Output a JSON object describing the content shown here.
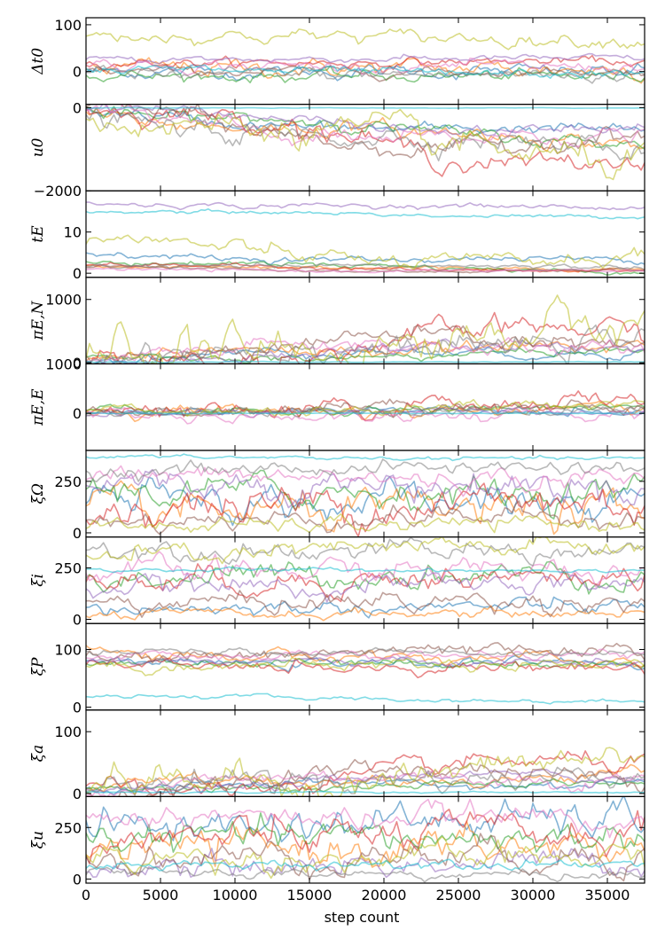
{
  "chart_data": {
    "type": "line",
    "description_type": "mcmc-trace-plot",
    "xlabel": "step count",
    "xlim": [
      0,
      37500
    ],
    "xticks": [
      0,
      5000,
      10000,
      15000,
      20000,
      25000,
      30000,
      35000
    ],
    "xtick_labels": [
      "0",
      "5000",
      "10000",
      "15000",
      "20000",
      "25000",
      "30000",
      "35000"
    ],
    "walker_colors": [
      "#1f77b4",
      "#ff7f0e",
      "#2ca02c",
      "#d62728",
      "#9467bd",
      "#8c564b",
      "#e377c2",
      "#7f7f7f",
      "#bcbd22",
      "#17becf"
    ],
    "panels": [
      {
        "ylabel": "Δt0",
        "ylim": [
          -70,
          115
        ],
        "yticks": [
          0,
          100
        ],
        "ytick_labels": [
          "0",
          "100"
        ],
        "walkers": [
          {
            "start": 0,
            "drift": 0,
            "noise": 12,
            "level": 0
          },
          {
            "start": 10,
            "drift": -5,
            "noise": 15,
            "level": 5
          },
          {
            "start": -10,
            "drift": 0,
            "noise": 10,
            "level": -10
          },
          {
            "start": 20,
            "drift": 5,
            "noise": 8,
            "level": 20
          },
          {
            "start": 25,
            "drift": 0,
            "noise": 6,
            "level": 28
          },
          {
            "start": 0,
            "drift": 0,
            "noise": 8,
            "level": 0
          },
          {
            "start": 15,
            "drift": 0,
            "noise": 10,
            "level": 10
          },
          {
            "start": -5,
            "drift": -5,
            "noise": 12,
            "level": -8
          },
          {
            "start": 80,
            "drift": -10,
            "noise": 12,
            "level": 70
          },
          {
            "start": 5,
            "drift": -5,
            "noise": 8,
            "level": -5
          }
        ]
      },
      {
        "ylabel": "u0",
        "ylim": [
          -2000,
          80
        ],
        "yticks": [
          -2000,
          0
        ],
        "ytick_labels": [
          "−2000",
          "0"
        ],
        "walkers": [
          {
            "start": -50,
            "drift": -400,
            "noise": 120,
            "level": -600
          },
          {
            "start": -60,
            "drift": -600,
            "noise": 150,
            "level": -800
          },
          {
            "start": -40,
            "drift": -500,
            "noise": 130,
            "level": -700
          },
          {
            "start": -80,
            "drift": -900,
            "noise": 200,
            "level": -1100
          },
          {
            "start": -30,
            "drift": -300,
            "noise": 100,
            "level": -500
          },
          {
            "start": -70,
            "drift": -700,
            "noise": 180,
            "level": -900
          },
          {
            "start": -50,
            "drift": -650,
            "noise": 170,
            "level": -850
          },
          {
            "start": -60,
            "drift": -800,
            "noise": 200,
            "level": -1000
          },
          {
            "start": -40,
            "drift": -900,
            "noise": 300,
            "level": -1100
          },
          {
            "start": -10,
            "drift": 0,
            "noise": 5,
            "level": -10
          }
        ]
      },
      {
        "ylabel": "tE",
        "ylim": [
          -1,
          20
        ],
        "yticks": [
          0,
          10
        ],
        "ytick_labels": [
          "0",
          "10"
        ],
        "walkers": [
          {
            "start": 5,
            "drift": -2,
            "noise": 0.6,
            "level": 3
          },
          {
            "start": 2,
            "drift": -1,
            "noise": 0.4,
            "level": 1
          },
          {
            "start": 3,
            "drift": -2,
            "noise": 0.5,
            "level": 1
          },
          {
            "start": 2,
            "drift": -1,
            "noise": 0.4,
            "level": 0.8
          },
          {
            "start": 17,
            "drift": 1,
            "noise": 0.5,
            "level": 16
          },
          {
            "start": 1.5,
            "drift": -1,
            "noise": 0.3,
            "level": 0.5
          },
          {
            "start": 1,
            "drift": -0.5,
            "noise": 0.3,
            "level": 0.5
          },
          {
            "start": 2,
            "drift": -1,
            "noise": 0.5,
            "level": 1.5
          },
          {
            "start": 8,
            "drift": 3,
            "noise": 1.5,
            "level": 3
          },
          {
            "start": 15,
            "drift": -1,
            "noise": 0.4,
            "level": 14
          }
        ]
      },
      {
        "ylabel": "πE,N",
        "ylim": [
          -20,
          1350
        ],
        "yticks": [
          0,
          1000
        ],
        "ytick_labels": [
          "0",
          "1000"
        ],
        "walkers": [
          {
            "start": 20,
            "drift": 200,
            "noise": 60,
            "level": 200
          },
          {
            "start": 20,
            "drift": 300,
            "noise": 80,
            "level": 300
          },
          {
            "start": 20,
            "drift": 150,
            "noise": 50,
            "level": 150
          },
          {
            "start": 30,
            "drift": 500,
            "noise": 150,
            "level": 400
          },
          {
            "start": 20,
            "drift": 250,
            "noise": 70,
            "level": 250
          },
          {
            "start": 30,
            "drift": 400,
            "noise": 120,
            "level": 350
          },
          {
            "start": 20,
            "drift": 350,
            "noise": 100,
            "level": 300
          },
          {
            "start": 20,
            "drift": 400,
            "noise": 150,
            "level": 350
          },
          {
            "start": 30,
            "drift": 600,
            "noise": 250,
            "level": 500
          },
          {
            "start": 10,
            "drift": 0,
            "noise": 5,
            "level": 10
          }
        ]
      },
      {
        "ylabel": "πE,E",
        "ylim": [
          -750,
          1000
        ],
        "yticks": [
          0,
          1000
        ],
        "ytick_labels": [
          "0",
          "1000"
        ],
        "walkers": [
          {
            "start": 0,
            "drift": 100,
            "noise": 60,
            "level": 50
          },
          {
            "start": 0,
            "drift": 200,
            "noise": 100,
            "level": 100
          },
          {
            "start": 20,
            "drift": 150,
            "noise": 70,
            "level": 100
          },
          {
            "start": 0,
            "drift": 300,
            "noise": 150,
            "level": 150
          },
          {
            "start": 0,
            "drift": 50,
            "noise": 50,
            "level": 30
          },
          {
            "start": 10,
            "drift": 200,
            "noise": 100,
            "level": 150
          },
          {
            "start": 0,
            "drift": -100,
            "noise": 100,
            "level": -50
          },
          {
            "start": 0,
            "drift": 150,
            "noise": 80,
            "level": 80
          },
          {
            "start": 20,
            "drift": 250,
            "noise": 90,
            "level": 150
          },
          {
            "start": 0,
            "drift": 0,
            "noise": 5,
            "level": 0
          }
        ]
      },
      {
        "ylabel": "ξΩ",
        "ylim": [
          -20,
          400
        ],
        "yticks": [
          0,
          250
        ],
        "ytick_labels": [
          "0",
          "250"
        ],
        "walkers": [
          {
            "start": 150,
            "drift": 0,
            "noise": 70,
            "level": 150
          },
          {
            "start": 100,
            "drift": 0,
            "noise": 70,
            "level": 100
          },
          {
            "start": 200,
            "drift": 0,
            "noise": 60,
            "level": 200
          },
          {
            "start": 120,
            "drift": 0,
            "noise": 80,
            "level": 150
          },
          {
            "start": 250,
            "drift": 0,
            "noise": 60,
            "level": 230
          },
          {
            "start": 50,
            "drift": 0,
            "noise": 40,
            "level": 80
          },
          {
            "start": 280,
            "drift": 0,
            "noise": 40,
            "level": 260
          },
          {
            "start": 300,
            "drift": 0,
            "noise": 30,
            "level": 320
          },
          {
            "start": 30,
            "drift": 0,
            "noise": 30,
            "level": 40
          },
          {
            "start": 370,
            "drift": 0,
            "noise": 8,
            "level": 360
          }
        ]
      },
      {
        "ylabel": "ξi",
        "ylim": [
          -20,
          400
        ],
        "yticks": [
          0,
          250
        ],
        "ytick_labels": [
          "0",
          "250"
        ],
        "walkers": [
          {
            "start": 50,
            "drift": 0,
            "noise": 30,
            "level": 60
          },
          {
            "start": 20,
            "drift": 0,
            "noise": 20,
            "level": 30
          },
          {
            "start": 200,
            "drift": 0,
            "noise": 50,
            "level": 220
          },
          {
            "start": 180,
            "drift": 0,
            "noise": 50,
            "level": 200
          },
          {
            "start": 150,
            "drift": 0,
            "noise": 40,
            "level": 170
          },
          {
            "start": 80,
            "drift": 0,
            "noise": 40,
            "level": 90
          },
          {
            "start": 220,
            "drift": 0,
            "noise": 50,
            "level": 240
          },
          {
            "start": 350,
            "drift": 0,
            "noise": 40,
            "level": 330
          },
          {
            "start": 300,
            "drift": 0,
            "noise": 40,
            "level": 350
          },
          {
            "start": 240,
            "drift": 0,
            "noise": 8,
            "level": 240
          }
        ]
      },
      {
        "ylabel": "ξP",
        "ylim": [
          -5,
          145
        ],
        "yticks": [
          0,
          100
        ],
        "ytick_labels": [
          "0",
          "100"
        ],
        "walkers": [
          {
            "start": 80,
            "drift": -10,
            "noise": 6,
            "level": 75
          },
          {
            "start": 100,
            "drift": -20,
            "noise": 8,
            "level": 80
          },
          {
            "start": 75,
            "drift": 0,
            "noise": 6,
            "level": 75
          },
          {
            "start": 70,
            "drift": 0,
            "noise": 8,
            "level": 70
          },
          {
            "start": 80,
            "drift": 0,
            "noise": 5,
            "level": 78
          },
          {
            "start": 85,
            "drift": 10,
            "noise": 10,
            "level": 95
          },
          {
            "start": 90,
            "drift": 0,
            "noise": 6,
            "level": 90
          },
          {
            "start": 95,
            "drift": 0,
            "noise": 5,
            "level": 95
          },
          {
            "start": 70,
            "drift": 0,
            "noise": 8,
            "level": 75
          },
          {
            "start": 20,
            "drift": -5,
            "noise": 3,
            "level": 12
          }
        ]
      },
      {
        "ylabel": "ξa",
        "ylim": [
          -5,
          135
        ],
        "yticks": [
          0,
          100
        ],
        "ytick_labels": [
          "0",
          "100"
        ],
        "walkers": [
          {
            "start": 5,
            "drift": 20,
            "noise": 6,
            "level": 20
          },
          {
            "start": 5,
            "drift": 30,
            "noise": 8,
            "level": 30
          },
          {
            "start": 5,
            "drift": 15,
            "noise": 5,
            "level": 15
          },
          {
            "start": 5,
            "drift": 40,
            "noise": 12,
            "level": 40
          },
          {
            "start": 5,
            "drift": 20,
            "noise": 6,
            "level": 25
          },
          {
            "start": 5,
            "drift": 35,
            "noise": 12,
            "level": 35
          },
          {
            "start": 5,
            "drift": 30,
            "noise": 10,
            "level": 30
          },
          {
            "start": 5,
            "drift": 40,
            "noise": 15,
            "level": 35
          },
          {
            "start": 5,
            "drift": 50,
            "noise": 20,
            "level": 45
          },
          {
            "start": 2,
            "drift": 0,
            "noise": 1,
            "level": 2
          }
        ]
      },
      {
        "ylabel": "ξu",
        "ylim": [
          -20,
          400
        ],
        "yticks": [
          0,
          250
        ],
        "ytick_labels": [
          "0",
          "250"
        ],
        "walkers": [
          {
            "start": 250,
            "drift": 0,
            "noise": 70,
            "level": 280
          },
          {
            "start": 150,
            "drift": 0,
            "noise": 70,
            "level": 150
          },
          {
            "start": 200,
            "drift": 0,
            "noise": 60,
            "level": 200
          },
          {
            "start": 180,
            "drift": 0,
            "noise": 70,
            "level": 220
          },
          {
            "start": 50,
            "drift": 0,
            "noise": 50,
            "level": 80
          },
          {
            "start": 100,
            "drift": 0,
            "noise": 60,
            "level": 120
          },
          {
            "start": 300,
            "drift": 0,
            "noise": 50,
            "level": 300
          },
          {
            "start": 30,
            "drift": 0,
            "noise": 20,
            "level": 20
          },
          {
            "start": 100,
            "drift": 0,
            "noise": 50,
            "level": 100
          },
          {
            "start": 60,
            "drift": 0,
            "noise": 20,
            "level": 80
          }
        ]
      }
    ]
  }
}
